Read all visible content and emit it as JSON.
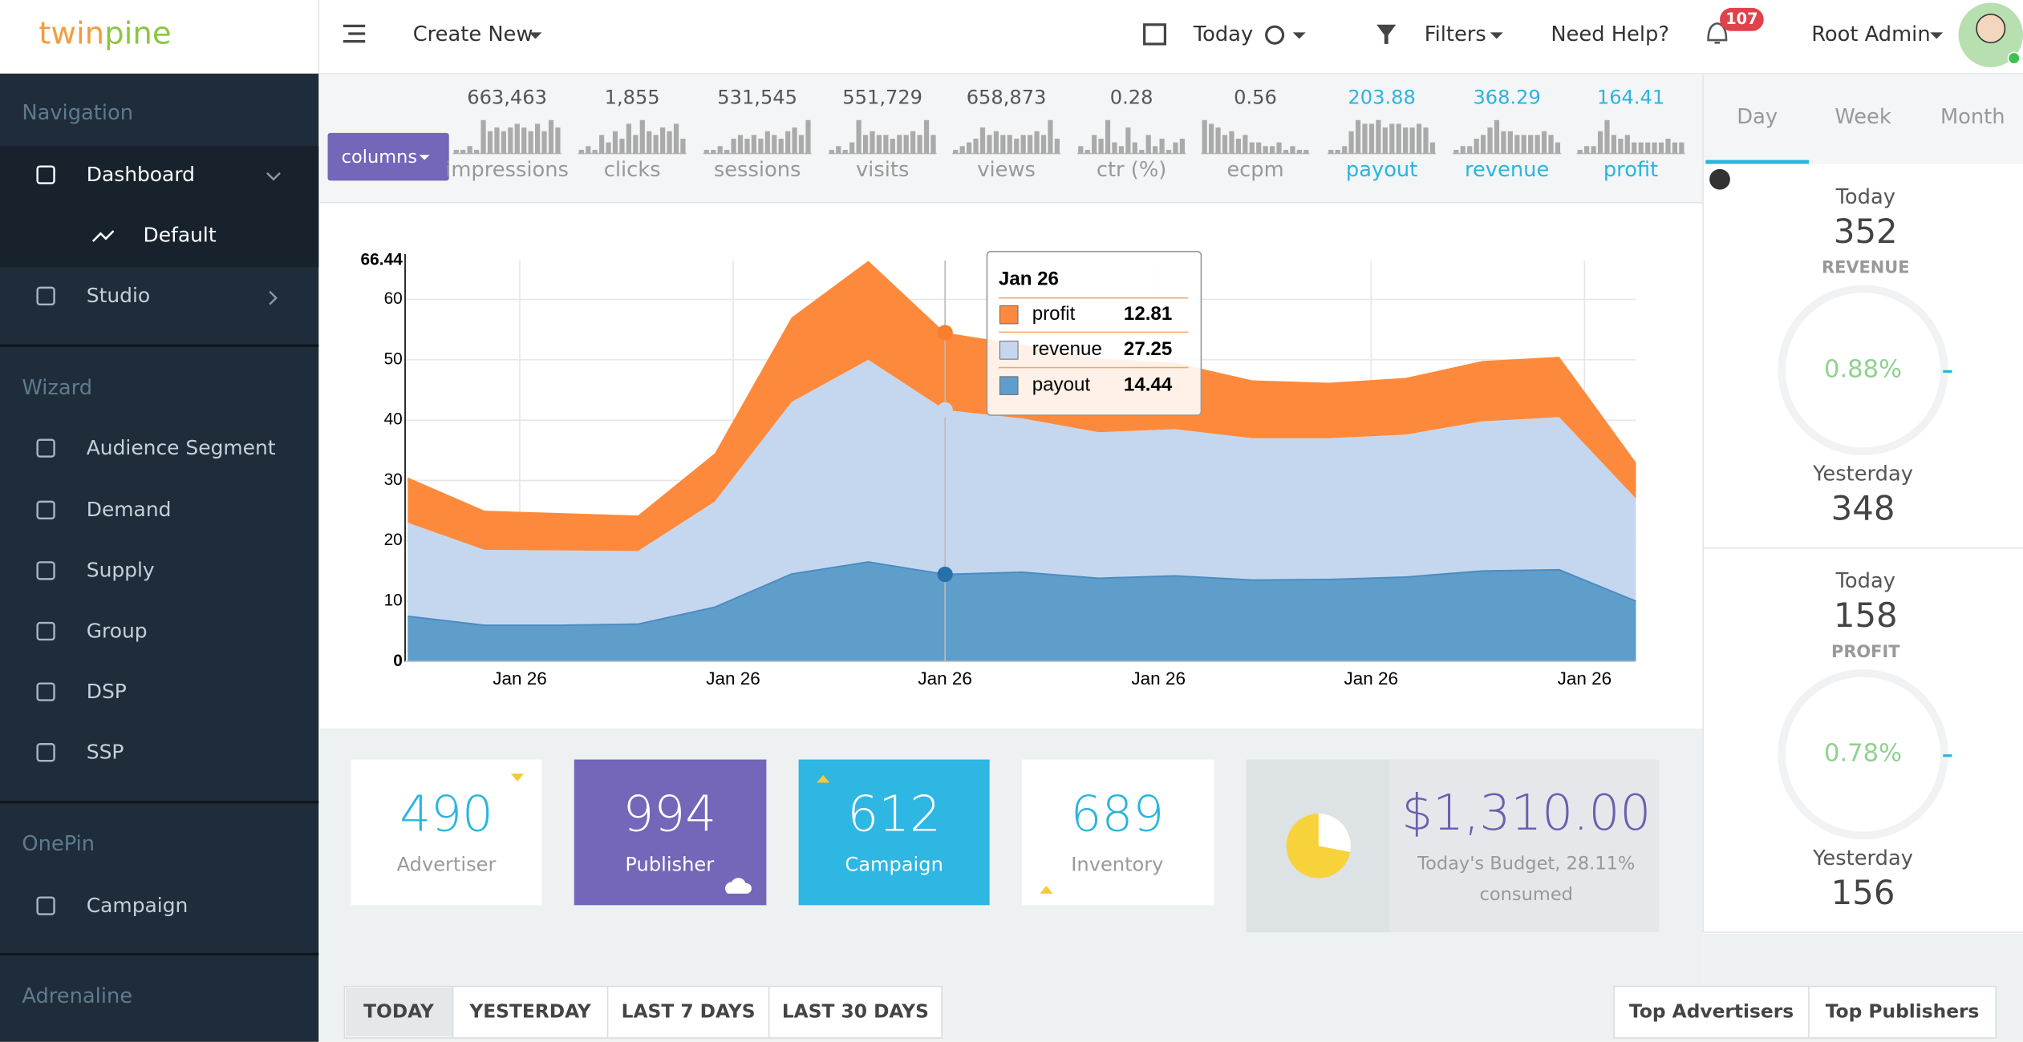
{
  "header": {
    "logo_1": "twin",
    "logo_2": "pine",
    "create_new": "Create New",
    "date": "Today",
    "filters": "Filters",
    "help": "Need Help?",
    "notifications": "107",
    "user": "Root Admin"
  },
  "sidebar": {
    "sections": [
      {
        "title": "Navigation",
        "items": [
          "Dashboard",
          "Default",
          "Studio"
        ]
      },
      {
        "title": "Wizard",
        "items": [
          "Audience Segment",
          "Demand",
          "Supply",
          "Group",
          "DSP",
          "SSP"
        ]
      },
      {
        "title": "OnePin",
        "items": [
          "Campaign"
        ]
      },
      {
        "title": "Adrenaline",
        "items": []
      }
    ]
  },
  "columns_button": "columns",
  "metrics": [
    {
      "value": "663,463",
      "label": "impressions",
      "bars": [
        1,
        1,
        2,
        1,
        9,
        6,
        7,
        6,
        7,
        8,
        7,
        6,
        8,
        6,
        9,
        7
      ]
    },
    {
      "value": "1,855",
      "label": "clicks",
      "bars": [
        1,
        2,
        1,
        5,
        3,
        6,
        4,
        8,
        5,
        9,
        6,
        5,
        7,
        6,
        8,
        4
      ]
    },
    {
      "value": "531,545",
      "label": "sessions",
      "bars": [
        1,
        1,
        2,
        1,
        4,
        5,
        4,
        5,
        4,
        6,
        5,
        4,
        6,
        7,
        5,
        9
      ]
    },
    {
      "value": "551,729",
      "label": "visits",
      "bars": [
        1,
        2,
        1,
        3,
        9,
        5,
        6,
        5,
        5,
        4,
        5,
        5,
        6,
        5,
        9,
        5
      ]
    },
    {
      "value": "658,873",
      "label": "views",
      "bars": [
        1,
        2,
        3,
        4,
        7,
        5,
        6,
        5,
        5,
        4,
        5,
        5,
        6,
        5,
        9,
        4
      ]
    },
    {
      "value": "0.28",
      "label": "ctr (%)",
      "bars": [
        2,
        1,
        5,
        4,
        9,
        3,
        2,
        7,
        3,
        1,
        5,
        2,
        4,
        1,
        3,
        4
      ]
    },
    {
      "value": "0.56",
      "label": "ecpm",
      "bars": [
        9,
        8,
        7,
        5,
        6,
        4,
        5,
        3,
        3,
        2,
        2,
        3,
        1,
        2,
        1,
        1
      ]
    },
    {
      "value": "203.88",
      "label": "payout",
      "bars": [
        1,
        1,
        2,
        6,
        9,
        8,
        8,
        9,
        7,
        8,
        8,
        7,
        7,
        8,
        7,
        3
      ]
    },
    {
      "value": "368.29",
      "label": "revenue",
      "bars": [
        1,
        2,
        2,
        4,
        5,
        7,
        9,
        6,
        6,
        5,
        5,
        5,
        5,
        6,
        5,
        3
      ]
    },
    {
      "value": "164.41",
      "label": "profit",
      "bars": [
        1,
        2,
        2,
        6,
        9,
        5,
        4,
        5,
        3,
        3,
        3,
        3,
        3,
        4,
        3,
        3
      ]
    }
  ],
  "tabs": [
    "Day",
    "Week",
    "Month"
  ],
  "summary": [
    {
      "today_label": "Today",
      "today": "352",
      "label": "REVENUE",
      "percent": "0.88%",
      "yesterday_label": "Yesterday",
      "yesterday": "348"
    },
    {
      "today_label": "Today",
      "today": "158",
      "label": "PROFIT",
      "percent": "0.78%",
      "yesterday_label": "Yesterday",
      "yesterday": "156"
    }
  ],
  "tiles": [
    {
      "value": "490",
      "label": "Advertiser"
    },
    {
      "value": "994",
      "label": "Publisher"
    },
    {
      "value": "612",
      "label": "Campaign"
    },
    {
      "value": "689",
      "label": "Inventory"
    }
  ],
  "budget": {
    "amount": "$1,310.00",
    "note_1": "Today's Budget, 28.11%",
    "note_2": "consumed"
  },
  "range_tabs": [
    "TODAY",
    "YESTERDAY",
    "LAST 7 DAYS",
    "LAST 30 DAYS"
  ],
  "top_tabs": [
    "Top Advertisers",
    "Top Publishers"
  ],
  "chart_data": {
    "type": "area",
    "stacked": true,
    "grid": true,
    "x": [
      0,
      1,
      2,
      3,
      4,
      5,
      6,
      7,
      8,
      9,
      10,
      11,
      12,
      13,
      14,
      15,
      16
    ],
    "xlim": [
      0,
      16
    ],
    "xticks": [
      {
        "value": 1.46,
        "label": "Jan 26"
      },
      {
        "value": 4.24,
        "label": "Jan 26"
      },
      {
        "value": 7,
        "label": "Jan 26"
      },
      {
        "value": 9.78,
        "label": "Jan 26"
      },
      {
        "value": 12.55,
        "label": "Jan 26"
      },
      {
        "value": 15.33,
        "label": "Jan 26"
      }
    ],
    "ylim": [
      0,
      66.44
    ],
    "yticks": [
      0,
      10,
      20,
      30,
      40,
      50,
      60,
      66.44
    ],
    "series": [
      {
        "name": "profit",
        "color": "#fd8a3c",
        "values": [
          7.5,
          6.5,
          6.2,
          5.9,
          8,
          14,
          16.4,
          12.81,
          12.2,
          12.2,
          11,
          9.6,
          9.2,
          9.4,
          10,
          10,
          6
        ]
      },
      {
        "name": "revenue",
        "color": "#c5d7ee",
        "values": [
          15.5,
          12.5,
          12.4,
          12.1,
          17.5,
          28.5,
          33.5,
          27.25,
          25.5,
          24.2,
          24.3,
          23.5,
          23.4,
          23.6,
          24.8,
          25.3,
          17
        ]
      },
      {
        "name": "payout",
        "color": "#5f9dcb",
        "values": [
          7.5,
          6,
          6,
          6.2,
          9,
          14.5,
          16.5,
          14.44,
          14.8,
          13.8,
          14.2,
          13.5,
          13.6,
          14,
          15,
          15.2,
          10
        ]
      }
    ],
    "tooltip_title": "Jan 26"
  }
}
